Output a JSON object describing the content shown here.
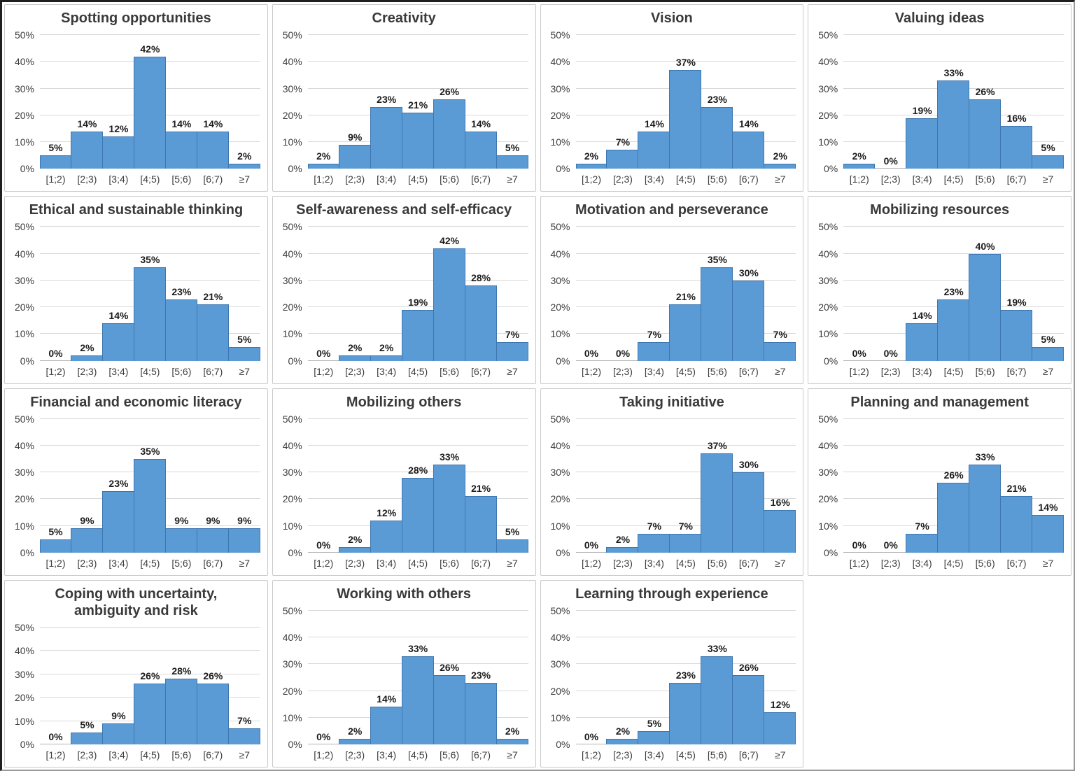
{
  "figure": {
    "grid_rows": 4,
    "grid_cols": 4,
    "panel_count": 15
  },
  "colors": {
    "bar_fill": "#5b9bd5",
    "bar_border": "#3e76b0",
    "gridline": "#d9d9d9",
    "axis_line": "#b3b3b3",
    "title_text": "#3a3a3a",
    "label_text": "#1c1c1c"
  },
  "chart_data": [
    {
      "type": "bar",
      "title": "Spotting opportunities",
      "categories": [
        "[1;2)",
        "[2;3)",
        "[3;4)",
        "[4;5)",
        "[5;6)",
        "[6;7)",
        "≥7"
      ],
      "values": [
        5,
        14,
        12,
        42,
        14,
        14,
        2
      ],
      "ylim": [
        0,
        50
      ],
      "yticks": [
        "0%",
        "10%",
        "20%",
        "30%",
        "40%",
        "50%"
      ]
    },
    {
      "type": "bar",
      "title": "Creativity",
      "categories": [
        "[1;2)",
        "[2;3)",
        "[3;4)",
        "[4;5)",
        "[5;6)",
        "[6;7)",
        "≥7"
      ],
      "values": [
        2,
        9,
        23,
        21,
        26,
        14,
        5
      ],
      "ylim": [
        0,
        50
      ],
      "yticks": [
        "0%",
        "10%",
        "20%",
        "30%",
        "40%",
        "50%"
      ]
    },
    {
      "type": "bar",
      "title": "Vision",
      "categories": [
        "[1;2)",
        "[2;3)",
        "[3;4)",
        "[4;5)",
        "[5;6)",
        "[6;7)",
        "≥7"
      ],
      "values": [
        2,
        7,
        14,
        37,
        23,
        14,
        2
      ],
      "ylim": [
        0,
        50
      ],
      "yticks": [
        "0%",
        "10%",
        "20%",
        "30%",
        "40%",
        "50%"
      ]
    },
    {
      "type": "bar",
      "title": "Valuing ideas",
      "categories": [
        "[1;2)",
        "[2;3)",
        "[3;4)",
        "[4;5)",
        "[5;6)",
        "[6;7)",
        "≥7"
      ],
      "values": [
        2,
        0,
        19,
        33,
        26,
        16,
        5
      ],
      "ylim": [
        0,
        50
      ],
      "yticks": [
        "0%",
        "10%",
        "20%",
        "30%",
        "40%",
        "50%"
      ]
    },
    {
      "type": "bar",
      "title": "Ethical and sustainable thinking",
      "categories": [
        "[1;2)",
        "[2;3)",
        "[3;4)",
        "[4;5)",
        "[5;6)",
        "[6;7)",
        "≥7"
      ],
      "values": [
        0,
        2,
        14,
        35,
        23,
        21,
        5
      ],
      "ylim": [
        0,
        50
      ],
      "yticks": [
        "0%",
        "10%",
        "20%",
        "30%",
        "40%",
        "50%"
      ]
    },
    {
      "type": "bar",
      "title": "Self-awareness and self-efficacy",
      "categories": [
        "[1;2)",
        "[2;3)",
        "[3;4)",
        "[4;5)",
        "[5;6)",
        "[6;7)",
        "≥7"
      ],
      "values": [
        0,
        2,
        2,
        19,
        42,
        28,
        7
      ],
      "ylim": [
        0,
        50
      ],
      "yticks": [
        "0%",
        "10%",
        "20%",
        "30%",
        "40%",
        "50%"
      ]
    },
    {
      "type": "bar",
      "title": "Motivation and perseverance",
      "categories": [
        "[1;2)",
        "[2;3)",
        "[3;4)",
        "[4;5)",
        "[5;6)",
        "[6;7)",
        "≥7"
      ],
      "values": [
        0,
        0,
        7,
        21,
        35,
        30,
        7
      ],
      "ylim": [
        0,
        50
      ],
      "yticks": [
        "0%",
        "10%",
        "20%",
        "30%",
        "40%",
        "50%"
      ]
    },
    {
      "type": "bar",
      "title": "Mobilizing resources",
      "categories": [
        "[1;2)",
        "[2;3)",
        "[3;4)",
        "[4;5)",
        "[5;6)",
        "[6;7)",
        "≥7"
      ],
      "values": [
        0,
        0,
        14,
        23,
        40,
        19,
        5
      ],
      "ylim": [
        0,
        50
      ],
      "yticks": [
        "0%",
        "10%",
        "20%",
        "30%",
        "40%",
        "50%"
      ]
    },
    {
      "type": "bar",
      "title": "Financial and economic literacy",
      "categories": [
        "[1;2)",
        "[2;3)",
        "[3;4)",
        "[4;5)",
        "[5;6)",
        "[6;7)",
        "≥7"
      ],
      "values": [
        5,
        9,
        23,
        35,
        9,
        9,
        9
      ],
      "ylim": [
        0,
        50
      ],
      "yticks": [
        "0%",
        "10%",
        "20%",
        "30%",
        "40%",
        "50%"
      ]
    },
    {
      "type": "bar",
      "title": "Mobilizing others",
      "categories": [
        "[1;2)",
        "[2;3)",
        "[3;4)",
        "[4;5)",
        "[5;6)",
        "[6;7)",
        "≥7"
      ],
      "values": [
        0,
        2,
        12,
        28,
        33,
        21,
        5
      ],
      "ylim": [
        0,
        50
      ],
      "yticks": [
        "0%",
        "10%",
        "20%",
        "30%",
        "40%",
        "50%"
      ]
    },
    {
      "type": "bar",
      "title": "Taking initiative",
      "categories": [
        "[1;2)",
        "[2;3)",
        "[3;4)",
        "[4;5)",
        "[5;6)",
        "[6;7)",
        "≥7"
      ],
      "values": [
        0,
        2,
        7,
        7,
        37,
        30,
        16
      ],
      "ylim": [
        0,
        50
      ],
      "yticks": [
        "0%",
        "10%",
        "20%",
        "30%",
        "40%",
        "50%"
      ]
    },
    {
      "type": "bar",
      "title": "Planning and management",
      "categories": [
        "[1;2)",
        "[2;3)",
        "[3;4)",
        "[4;5)",
        "[5;6)",
        "[6;7)",
        "≥7"
      ],
      "values": [
        0,
        0,
        7,
        26,
        33,
        21,
        14
      ],
      "ylim": [
        0,
        50
      ],
      "yticks": [
        "0%",
        "10%",
        "20%",
        "30%",
        "40%",
        "50%"
      ]
    },
    {
      "type": "bar",
      "title": "Coping with uncertainty, ambiguity and risk",
      "categories": [
        "[1;2)",
        "[2;3)",
        "[3;4)",
        "[4;5)",
        "[5;6)",
        "[6;7)",
        "≥7"
      ],
      "values": [
        0,
        5,
        9,
        26,
        28,
        26,
        7
      ],
      "ylim": [
        0,
        50
      ],
      "yticks": [
        "0%",
        "10%",
        "20%",
        "30%",
        "40%",
        "50%"
      ]
    },
    {
      "type": "bar",
      "title": "Working with others",
      "categories": [
        "[1;2)",
        "[2;3)",
        "[3;4)",
        "[4;5)",
        "[5;6)",
        "[6;7)",
        "≥7"
      ],
      "values": [
        0,
        2,
        14,
        33,
        26,
        23,
        2
      ],
      "ylim": [
        0,
        50
      ],
      "yticks": [
        "0%",
        "10%",
        "20%",
        "30%",
        "40%",
        "50%"
      ]
    },
    {
      "type": "bar",
      "title": "Learning through experience",
      "categories": [
        "[1;2)",
        "[2;3)",
        "[3;4)",
        "[4;5)",
        "[5;6)",
        "[6;7)",
        "≥7"
      ],
      "values": [
        0,
        2,
        5,
        23,
        33,
        26,
        12
      ],
      "ylim": [
        0,
        50
      ],
      "yticks": [
        "0%",
        "10%",
        "20%",
        "30%",
        "40%",
        "50%"
      ]
    }
  ]
}
